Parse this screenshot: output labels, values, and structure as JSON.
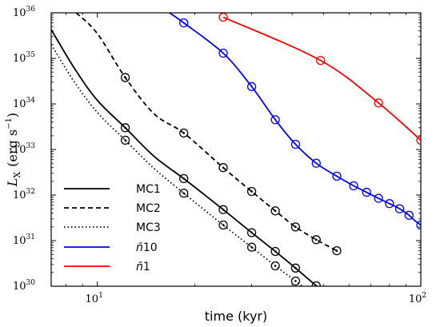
{
  "chart_data": {
    "type": "line",
    "title": "",
    "xlabel": "time (kyr)",
    "ylabel_main": "L",
    "ylabel_sub": "X",
    "ylabel_units": "(erg s",
    "ylabel_units_exp": "−1",
    "ylabel_units_close": ")",
    "xscale": "log",
    "yscale": "log",
    "xlim": [
      7.2,
      100
    ],
    "ylim": [
      1e+30,
      1e+36
    ],
    "x_major_ticks": [
      {
        "value": 10,
        "base": "10",
        "exp": "1"
      },
      {
        "value": 100,
        "base": "10",
        "exp": "2"
      }
    ],
    "y_major_ticks": [
      {
        "value": 1e+30,
        "base": "10",
        "exp": "30"
      },
      {
        "value": 1e+31,
        "base": "10",
        "exp": "31"
      },
      {
        "value": 1e+32,
        "base": "10",
        "exp": "32"
      },
      {
        "value": 1e+33,
        "base": "10",
        "exp": "33"
      },
      {
        "value": 1e+34,
        "base": "10",
        "exp": "34"
      },
      {
        "value": 1e+35,
        "base": "10",
        "exp": "35"
      },
      {
        "value": 1e+36,
        "base": "10",
        "exp": "36"
      }
    ],
    "legend_position": "lower-left",
    "grid": false,
    "series": [
      {
        "name": "MC1",
        "color": "#000000",
        "dash": "solid",
        "marker": "circle-dot",
        "curve": [
          [
            7.2,
            4.3e+35
          ],
          [
            8.5,
            6e+34
          ],
          [
            10,
            1.2e+34
          ],
          [
            12.2,
            3e+33
          ],
          [
            15,
            7e+32
          ],
          [
            18.5,
            2.3e+32
          ],
          [
            24.5,
            4.8e+31
          ],
          [
            30,
            1.5e+31
          ],
          [
            35.5,
            5.8e+30
          ],
          [
            41,
            2.5e+30
          ],
          [
            47.5,
            1.02e+30
          ]
        ],
        "x": [
          12.2,
          18.5,
          24.5,
          30,
          35.5,
          41,
          47.5
        ],
        "y": [
          3e+33,
          2.3e+32,
          4.8e+31,
          1.5e+31,
          5.8e+30,
          2.5e+30,
          1.02e+30
        ]
      },
      {
        "name": "MC2",
        "color": "#000000",
        "dash": "dashed",
        "marker": "circle-dot",
        "curve": [
          [
            8.6,
            1e+36
          ],
          [
            10,
            3.5e+35
          ],
          [
            12.2,
            3.8e+34
          ],
          [
            15,
            6e+33
          ],
          [
            18.5,
            2.3e+33
          ],
          [
            24.5,
            4e+32
          ],
          [
            30,
            1.2e+32
          ],
          [
            35.5,
            4.5e+31
          ],
          [
            41,
            2e+31
          ],
          [
            47.5,
            1.05e+31
          ],
          [
            55,
            6e+30
          ]
        ],
        "x": [
          12.2,
          18.5,
          24.5,
          30,
          35.5,
          41,
          47.5,
          55
        ],
        "y": [
          3.8e+34,
          2.3e+33,
          4e+32,
          1.2e+32,
          4.5e+31,
          2e+31,
          1.05e+31,
          6e+30
        ]
      },
      {
        "name": "MC3",
        "color": "#000000",
        "dash": "dotted",
        "marker": "circle-dot",
        "curve": [
          [
            7.2,
            2e+35
          ],
          [
            8.5,
            3e+34
          ],
          [
            10,
            6.5e+33
          ],
          [
            12.2,
            1.6e+33
          ],
          [
            15,
            3.8e+32
          ],
          [
            18.5,
            1.1e+32
          ],
          [
            24.5,
            2.2e+31
          ],
          [
            30,
            7.2e+30
          ],
          [
            35.5,
            2.8e+30
          ],
          [
            41,
            1.3e+30
          ],
          [
            43,
            1e+30
          ]
        ],
        "x": [
          12.2,
          18.5,
          24.5,
          30,
          35.5,
          41
        ],
        "y": [
          1.6e+33,
          1.1e+32,
          2.2e+31,
          7.2e+30,
          2.8e+30,
          1.3e+30
        ]
      },
      {
        "name": "n̄ 10",
        "name_main": "n̄",
        "name_num": "10",
        "color": "#0000ff",
        "dash": "solid",
        "marker": "circle",
        "curve": [
          [
            16.7,
            1e+36
          ],
          [
            18.5,
            6e+35
          ],
          [
            24.5,
            1.3e+35
          ],
          [
            30,
            2.4e+34
          ],
          [
            35.5,
            4.5e+33
          ],
          [
            41,
            1.3e+33
          ],
          [
            47.5,
            5e+32
          ],
          [
            55,
            2.6e+32
          ],
          [
            62,
            1.6e+32
          ],
          [
            68,
            1.15e+32
          ],
          [
            74,
            8.5e+31
          ],
          [
            80,
            6.5e+31
          ],
          [
            86,
            5e+31
          ],
          [
            92,
            3.6e+31
          ],
          [
            95,
            2.9e+31
          ],
          [
            100,
            2.2e+31
          ]
        ],
        "x": [
          18.5,
          24.5,
          30,
          35.5,
          41,
          47.5,
          55,
          62,
          68,
          74,
          80,
          86,
          92,
          100
        ],
        "y": [
          6e+35,
          1.3e+35,
          2.4e+34,
          4.5e+33,
          1.3e+33,
          5e+32,
          2.6e+32,
          1.6e+32,
          1.15e+32,
          8.5e+31,
          6.5e+31,
          5e+31,
          3.6e+31,
          2.2e+31
        ]
      },
      {
        "name": "n̄ 1",
        "name_main": "n̄",
        "name_num": "1",
        "color": "#ff0000",
        "dash": "solid",
        "marker": "circle",
        "curve": [
          [
            24.5,
            8e+35
          ],
          [
            49,
            9e+34
          ],
          [
            74,
            1.05e+34
          ],
          [
            100,
            1.6e+33
          ]
        ],
        "x": [
          24.5,
          49,
          74,
          100
        ],
        "y": [
          8e+35,
          9e+34,
          1.05e+34,
          1.6e+33
        ]
      }
    ]
  }
}
